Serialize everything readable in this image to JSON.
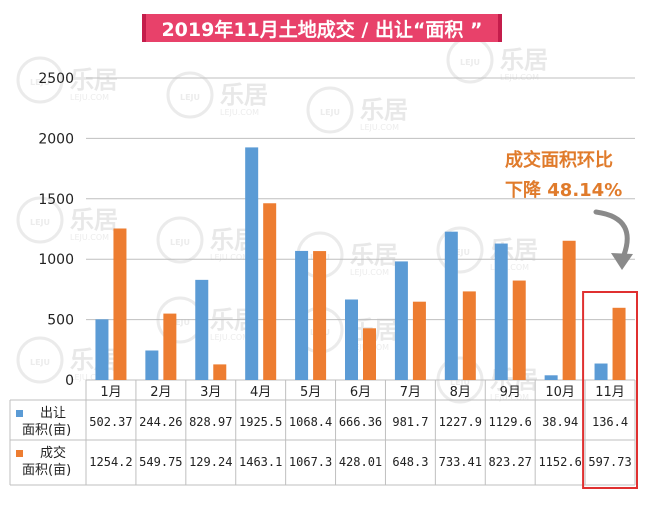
{
  "title": "2019年11月土地成交 / 出让“面积 ”",
  "callout": {
    "line1": "成交面积环比",
    "line2": "下降 48.14%"
  },
  "colors": {
    "series_a": "#5b9bd5",
    "series_b": "#ed7d31",
    "title_bg": "#e8416a",
    "highlight": "#e03030",
    "callout": "#e07b2b"
  },
  "chart_data": {
    "type": "bar",
    "categories": [
      "1月",
      "2月",
      "3月",
      "4月",
      "5月",
      "6月",
      "7月",
      "8月",
      "9月",
      "10月",
      "11月"
    ],
    "ylim": [
      0,
      2500
    ],
    "yticks": [
      "0",
      "500",
      "1000",
      "1500",
      "2000",
      "2500"
    ],
    "grid": true,
    "series": [
      {
        "name": "出让面积(亩)",
        "values": [
          502.37,
          244.26,
          828.97,
          1925.5,
          1068.4,
          666.36,
          981.7,
          1227.9,
          1129.6,
          38.94,
          136.4
        ]
      },
      {
        "name": "成交面积(亩)",
        "values": [
          1254.2,
          549.75,
          129.24,
          1463.1,
          1067.3,
          428.01,
          648.3,
          733.41,
          823.27,
          1152.6,
          597.73
        ]
      }
    ],
    "table_rows": [
      {
        "label_line1": "出让",
        "label_line2": "面积(亩)",
        "cells": [
          "502.37",
          "244.26",
          "828.97",
          "1925.5",
          "1068.4",
          "666.36",
          "981.7",
          "1227.9",
          "1129.6",
          "38.94",
          "136.4"
        ]
      },
      {
        "label_line1": "成交",
        "label_line2": "面积(亩)",
        "cells": [
          "1254.2",
          "549.75",
          "129.24",
          "1463.1",
          "1067.3",
          "428.01",
          "648.3",
          "733.41",
          "823.27",
          "1152.6",
          "597.73"
        ]
      }
    ],
    "highlight_category": "11月"
  },
  "watermark": {
    "brand": "乐居",
    "logo": "LEJU",
    "domain": "LEJU.COM"
  }
}
